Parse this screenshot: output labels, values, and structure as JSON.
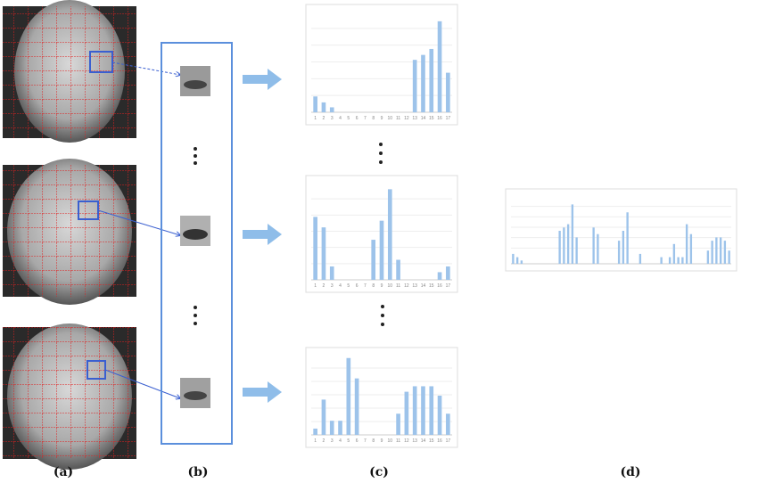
{
  "panels": {
    "a": "(a)",
    "b": "(b)",
    "c": "(c)",
    "d": "(d)"
  },
  "histograms": [
    {
      "type": "bar",
      "categories": [
        1,
        2,
        3,
        4,
        5,
        6,
        7,
        8,
        9,
        10,
        11,
        12,
        13,
        14,
        15,
        16,
        17
      ],
      "values": [
        16,
        10,
        5,
        0,
        0,
        0,
        0,
        0,
        0,
        0,
        0,
        0,
        53,
        58,
        64,
        92,
        40
      ],
      "ylim": [
        0,
        100
      ],
      "color": "#9dc3ea"
    },
    {
      "type": "bar",
      "categories": [
        1,
        2,
        3,
        4,
        5,
        6,
        7,
        8,
        9,
        10,
        11,
        12,
        13,
        14,
        15,
        16,
        17
      ],
      "values": [
        66,
        55,
        14,
        0,
        0,
        0,
        0,
        42,
        62,
        95,
        21,
        0,
        0,
        0,
        0,
        8,
        14
      ],
      "ylim": [
        0,
        100
      ],
      "color": "#9dc3ea"
    },
    {
      "type": "bar",
      "categories": [
        1,
        2,
        3,
        4,
        5,
        6,
        7,
        8,
        9,
        10,
        11,
        12,
        13,
        14,
        15,
        16,
        17
      ],
      "values": [
        8,
        45,
        18,
        18,
        98,
        72,
        0,
        0,
        0,
        0,
        27,
        55,
        62,
        62,
        62,
        50,
        27
      ],
      "ylim": [
        0,
        100
      ],
      "color": "#9dc3ea"
    }
  ],
  "concatenated": {
    "type": "bar",
    "values": [
      15,
      10,
      5,
      0,
      0,
      0,
      0,
      0,
      0,
      0,
      0,
      50,
      55,
      60,
      90,
      40,
      0,
      0,
      0,
      55,
      45,
      0,
      0,
      0,
      0,
      35,
      50,
      78,
      0,
      0,
      15,
      0,
      0,
      0,
      0,
      10,
      0,
      10,
      30,
      10,
      10,
      60,
      45,
      0,
      0,
      0,
      20,
      35,
      40,
      40,
      35,
      20
    ],
    "ylim": [
      0,
      100
    ],
    "color": "#9dc3ea"
  }
}
